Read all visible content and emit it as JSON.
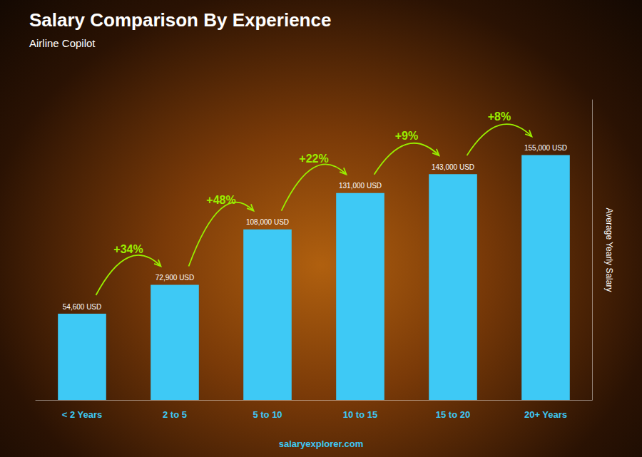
{
  "chart_data": {
    "type": "bar",
    "title": "Salary Comparison By Experience",
    "subtitle": "Airline Copilot",
    "categories": [
      "< 2 Years",
      "2 to 5",
      "5 to 10",
      "10 to 15",
      "15 to 20",
      "20+ Years"
    ],
    "values": [
      54600,
      72900,
      108000,
      131000,
      143000,
      155000
    ],
    "value_labels": [
      "54,600 USD",
      "72,900 USD",
      "108,000 USD",
      "131,000 USD",
      "143,000 USD",
      "155,000 USD"
    ],
    "data_labels": true,
    "color": "#3EC9F5",
    "ylabel": "Average Yearly Salary",
    "ylim": [
      0,
      190000
    ],
    "annotations": [
      "+34%",
      "+48%",
      "+22%",
      "+9%",
      "+8%"
    ],
    "footer": "salaryexplorer.com",
    "grid": false,
    "tick_labels": "x"
  }
}
